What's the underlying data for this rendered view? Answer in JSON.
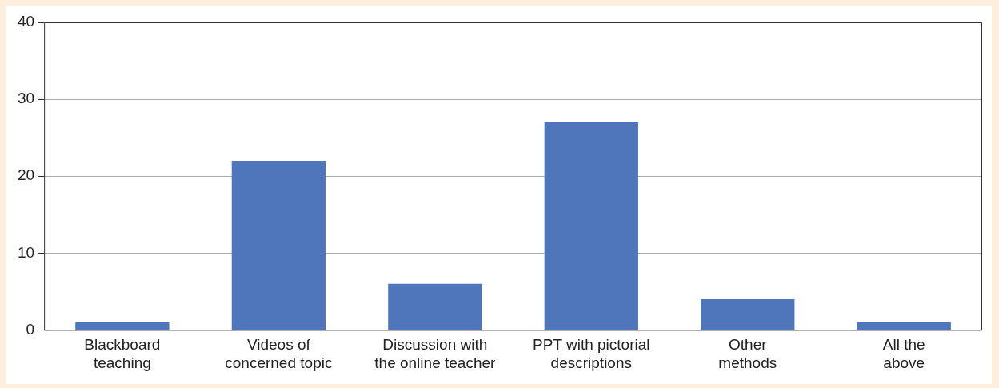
{
  "chart_data": {
    "type": "bar",
    "categories": [
      "Blackboard teaching",
      "Videos of concerned topic",
      "Discussion with the online teacher",
      "PPT with pictorial descriptions",
      "Other methods",
      "All the above"
    ],
    "values": [
      1,
      22,
      6,
      27,
      4,
      1
    ],
    "color": "#4f76bb",
    "ylim": [
      0,
      40
    ],
    "yticks": [
      0,
      10,
      20,
      30,
      40
    ],
    "grid": "y",
    "legend": false
  }
}
